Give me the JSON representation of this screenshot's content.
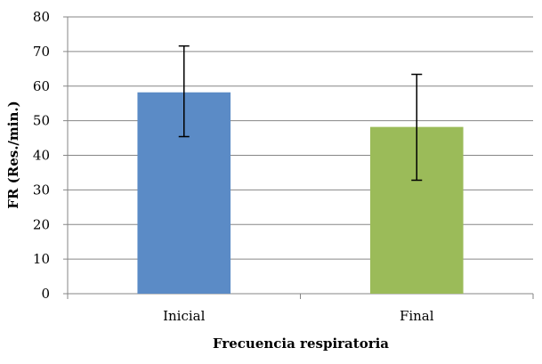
{
  "chart_data": {
    "type": "bar",
    "categories": [
      "Inicial",
      "Final"
    ],
    "values": [
      58.2,
      48.2
    ],
    "error_bars": {
      "upper": [
        71.6,
        63.4
      ],
      "lower": [
        45.4,
        32.8
      ]
    },
    "bar_colors": [
      "#5B8BC6",
      "#9BBB59"
    ],
    "title": "",
    "xlabel": "Frecuencia respiratoria",
    "ylabel": "FR (Res./min.)",
    "ylim": [
      0,
      80
    ],
    "yticks": [
      "0",
      "10",
      "20",
      "30",
      "40",
      "50",
      "60",
      "70",
      "80"
    ],
    "grid": true,
    "legend": false
  }
}
